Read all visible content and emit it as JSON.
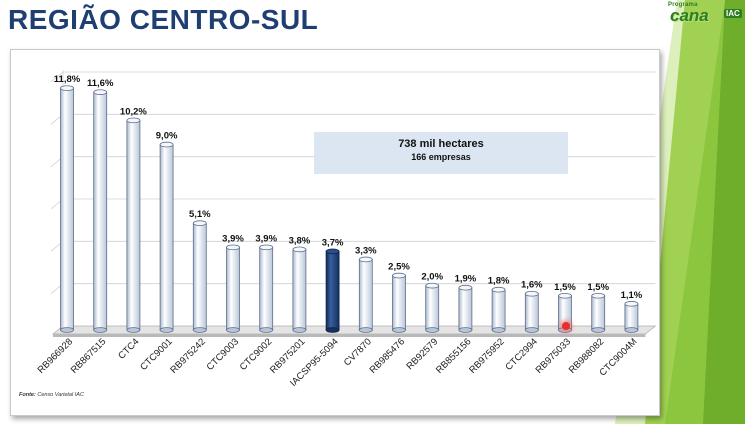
{
  "slide": {
    "title": "REGIÃO CENTRO-SUL"
  },
  "logo": {
    "small_text": "Programa",
    "main_text": "cana",
    "badge": "IAC"
  },
  "chart_data": {
    "type": "bar",
    "title": "",
    "xlabel": "",
    "ylabel": "",
    "ylim": [
      0,
      12.6
    ],
    "grid": true,
    "categories": [
      "RB966928",
      "RB867515",
      "CTC4",
      "CTC9001",
      "RB975242",
      "CTC9003",
      "CTC9002",
      "RB975201",
      "IACSP95-5094",
      "CV7870",
      "RB985476",
      "RB92579",
      "RB855156",
      "RB975952",
      "CTC2994",
      "RB975033",
      "RB988082",
      "CTC9004M"
    ],
    "values": [
      11.8,
      11.6,
      10.2,
      9.0,
      5.1,
      3.9,
      3.9,
      3.8,
      3.7,
      3.3,
      2.5,
      2.0,
      1.9,
      1.8,
      1.6,
      1.5,
      1.5,
      1.1
    ],
    "value_labels": [
      "11,8%",
      "11,6%",
      "10,2%",
      "9,0%",
      "5,1%",
      "3,9%",
      "3,9%",
      "3,8%",
      "3,7%",
      "3,3%",
      "2,5%",
      "2,0%",
      "1,9%",
      "1,8%",
      "1,6%",
      "1,5%",
      "1,5%",
      "1,1%"
    ],
    "highlight_index": 8,
    "colors": {
      "bar": "#e6ecf6",
      "bar_highlight": "#1f3f7a",
      "grid": "#d0d0d0"
    }
  },
  "info_box": {
    "line1": "738 mil hectares",
    "line2": "166 empresas"
  },
  "source": {
    "label": "Fonte:",
    "text": "Censo Varietal IAC"
  }
}
